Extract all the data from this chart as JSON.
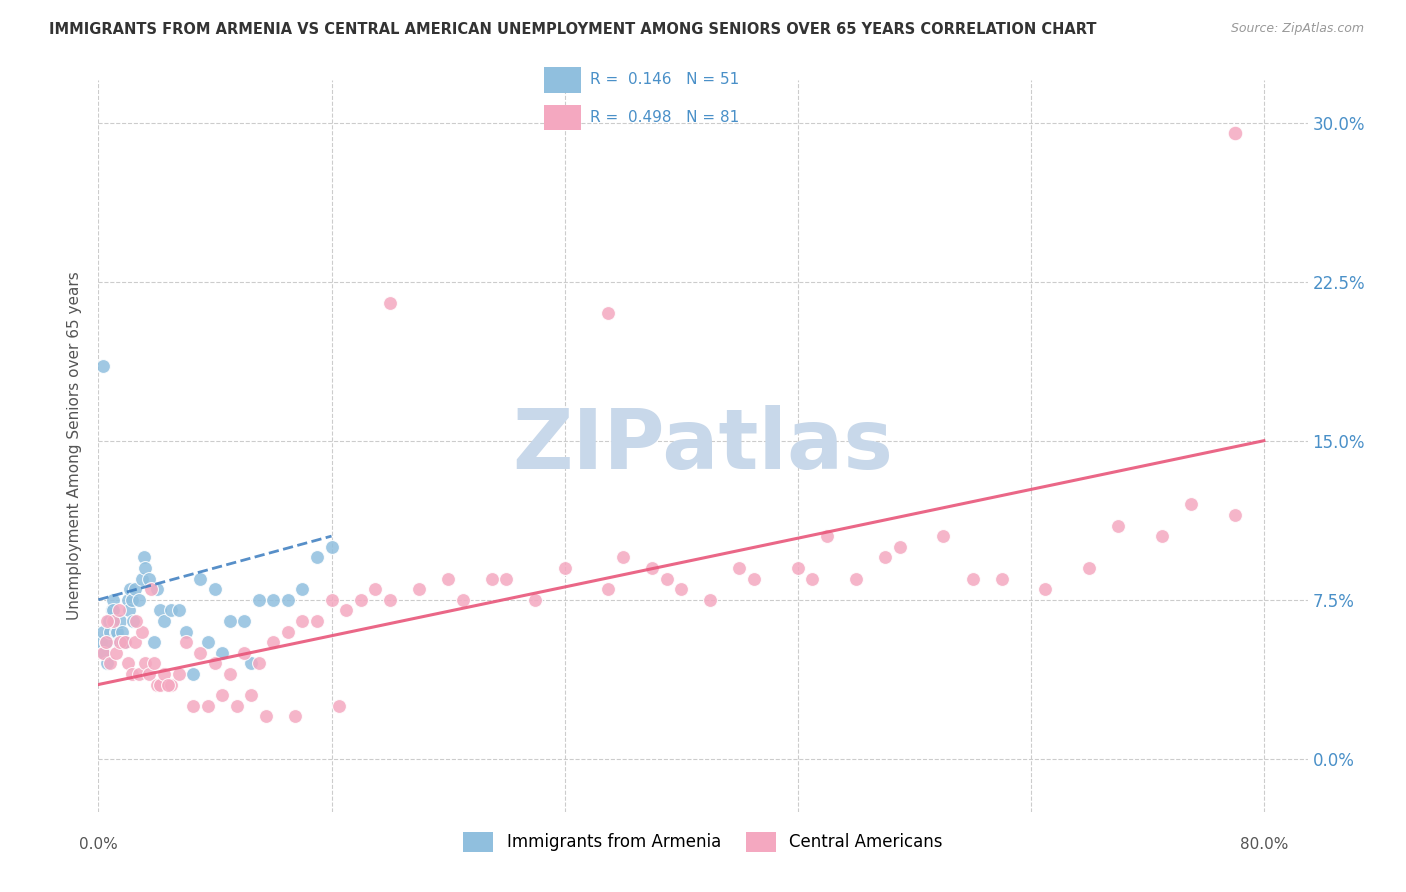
{
  "title": "IMMIGRANTS FROM ARMENIA VS CENTRAL AMERICAN UNEMPLOYMENT AMONG SENIORS OVER 65 YEARS CORRELATION CHART",
  "source": "Source: ZipAtlas.com",
  "ylabel": "Unemployment Among Seniors over 65 years",
  "ytick_values": [
    0.0,
    7.5,
    15.0,
    22.5,
    30.0
  ],
  "xtick_values": [
    0.0,
    16.0,
    32.0,
    48.0,
    64.0,
    80.0
  ],
  "xlim": [
    0.0,
    83.0
  ],
  "ylim": [
    -2.5,
    32.0
  ],
  "legend_r1": "R = 0.146",
  "legend_n1": "N = 51",
  "legend_r2": "R = 0.498",
  "legend_n2": "N = 81",
  "legend_label1": "Immigrants from Armenia",
  "legend_label2": "Central Americans",
  "blue_color": "#90bfde",
  "pink_color": "#f4a8c0",
  "blue_line_color": "#3a7bbf",
  "pink_line_color": "#e8567a",
  "blue_scatter_x": [
    0.2,
    0.3,
    0.4,
    0.5,
    0.6,
    0.7,
    0.8,
    0.9,
    1.0,
    1.0,
    1.1,
    1.2,
    1.3,
    1.4,
    1.5,
    1.6,
    1.7,
    1.8,
    2.0,
    2.1,
    2.2,
    2.3,
    2.4,
    2.5,
    2.8,
    3.0,
    3.1,
    3.2,
    3.5,
    3.8,
    4.0,
    4.2,
    4.5,
    5.0,
    5.5,
    6.0,
    6.5,
    7.0,
    7.5,
    8.0,
    8.5,
    9.0,
    10.0,
    10.5,
    11.0,
    12.0,
    13.0,
    14.0,
    15.0,
    16.0,
    0.3
  ],
  "blue_scatter_y": [
    5.5,
    6.0,
    5.0,
    5.5,
    4.5,
    6.5,
    6.0,
    7.0,
    7.5,
    7.0,
    6.5,
    6.0,
    6.0,
    5.5,
    6.5,
    6.0,
    5.5,
    5.5,
    7.5,
    7.0,
    8.0,
    7.5,
    6.5,
    8.0,
    7.5,
    8.5,
    9.5,
    9.0,
    8.5,
    5.5,
    8.0,
    7.0,
    6.5,
    7.0,
    7.0,
    6.0,
    4.0,
    8.5,
    5.5,
    8.0,
    5.0,
    6.5,
    6.5,
    4.5,
    7.5,
    7.5,
    7.5,
    8.0,
    9.5,
    10.0,
    18.5
  ],
  "pink_scatter_x": [
    0.3,
    0.5,
    0.8,
    1.0,
    1.2,
    1.5,
    1.8,
    2.0,
    2.3,
    2.5,
    2.8,
    3.0,
    3.2,
    3.5,
    3.8,
    4.0,
    4.2,
    4.5,
    5.0,
    5.5,
    6.0,
    7.0,
    8.0,
    9.0,
    10.0,
    11.0,
    12.0,
    13.0,
    14.0,
    15.0,
    16.0,
    17.0,
    18.0,
    19.0,
    20.0,
    22.0,
    24.0,
    25.0,
    27.0,
    28.0,
    30.0,
    32.0,
    35.0,
    36.0,
    38.0,
    39.0,
    40.0,
    42.0,
    44.0,
    45.0,
    48.0,
    49.0,
    50.0,
    52.0,
    54.0,
    55.0,
    58.0,
    60.0,
    62.0,
    65.0,
    68.0,
    70.0,
    73.0,
    75.0,
    78.0,
    35.0,
    20.0,
    0.6,
    1.4,
    2.6,
    3.6,
    4.8,
    6.5,
    7.5,
    8.5,
    9.5,
    10.5,
    11.5,
    13.5,
    16.5
  ],
  "pink_scatter_y": [
    5.0,
    5.5,
    4.5,
    6.5,
    5.0,
    5.5,
    5.5,
    4.5,
    4.0,
    5.5,
    4.0,
    6.0,
    4.5,
    4.0,
    4.5,
    3.5,
    3.5,
    4.0,
    3.5,
    4.0,
    5.5,
    5.0,
    4.5,
    4.0,
    5.0,
    4.5,
    5.5,
    6.0,
    6.5,
    6.5,
    7.5,
    7.0,
    7.5,
    8.0,
    7.5,
    8.0,
    8.5,
    7.5,
    8.5,
    8.5,
    7.5,
    9.0,
    8.0,
    9.5,
    9.0,
    8.5,
    8.0,
    7.5,
    9.0,
    8.5,
    9.0,
    8.5,
    10.5,
    8.5,
    9.5,
    10.0,
    10.5,
    8.5,
    8.5,
    8.0,
    9.0,
    11.0,
    10.5,
    12.0,
    11.5,
    21.0,
    21.5,
    6.5,
    7.0,
    6.5,
    8.0,
    3.5,
    2.5,
    2.5,
    3.0,
    2.5,
    3.0,
    2.0,
    2.0,
    2.5
  ],
  "pink_outlier_x": 78.0,
  "pink_outlier_y": 29.5,
  "blue_line_x": [
    0.0,
    16.0
  ],
  "blue_line_y": [
    7.5,
    10.5
  ],
  "pink_line_x": [
    0.0,
    80.0
  ],
  "pink_line_y": [
    3.5,
    15.0
  ],
  "watermark_text": "ZIPatlas",
  "watermark_color": "#c8d8ea",
  "background_color": "#ffffff",
  "grid_color": "#cccccc",
  "title_color": "#333333",
  "right_ytick_color": "#4a90c8",
  "ylabel_color": "#555555",
  "legend_border_color": "#cccccc",
  "legend_text_color": "#222222",
  "legend_value_color": "#4a90c8"
}
